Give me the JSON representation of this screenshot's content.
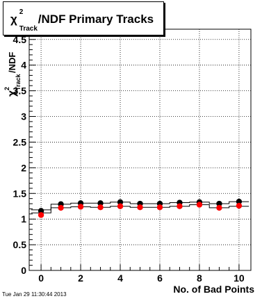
{
  "chart_data": {
    "type": "scatter",
    "title": "χ²_Track/NDF Primary Tracks",
    "title_parts": {
      "chi": "χ",
      "sup": "2",
      "sub": "Track",
      "rest": "/NDF Primary Tracks"
    },
    "ylabel_parts": {
      "chi": "χ",
      "sup": "2",
      "sub": "Track",
      "rest": "/NDF"
    },
    "xlabel": "No. of Bad Points",
    "xlim": [
      -0.6,
      10.6
    ],
    "ylim": [
      0,
      4.7
    ],
    "xticks": [
      0,
      2,
      4,
      6,
      8,
      10
    ],
    "yticks": [
      0,
      0.5,
      1,
      1.5,
      2,
      2.5,
      3,
      3.5,
      4,
      4.5
    ],
    "ytick_labels": [
      "0",
      "0.5",
      "1",
      "1.5",
      "2",
      "2.5",
      "3",
      "3.5",
      "4",
      "4.5"
    ],
    "grid": true,
    "x": [
      0,
      1,
      2,
      3,
      4,
      5,
      6,
      7,
      8,
      9,
      10
    ],
    "series": [
      {
        "color": "#000000",
        "values": [
          1.16,
          1.29,
          1.31,
          1.31,
          1.33,
          1.3,
          1.3,
          1.32,
          1.33,
          1.3,
          1.34
        ],
        "steps": [
          1.18,
          1.29,
          1.31,
          1.31,
          1.33,
          1.3,
          1.3,
          1.32,
          1.33,
          1.3,
          1.34
        ]
      },
      {
        "color": "#ff0000",
        "values": [
          1.08,
          1.22,
          1.24,
          1.23,
          1.25,
          1.23,
          1.23,
          1.25,
          1.28,
          1.22,
          1.26
        ],
        "steps": [
          1.12,
          1.22,
          1.24,
          1.23,
          1.25,
          1.23,
          1.23,
          1.25,
          1.28,
          1.22,
          1.25
        ]
      }
    ]
  },
  "timestamp": "Tue Jan 29 11:30:44 2013"
}
